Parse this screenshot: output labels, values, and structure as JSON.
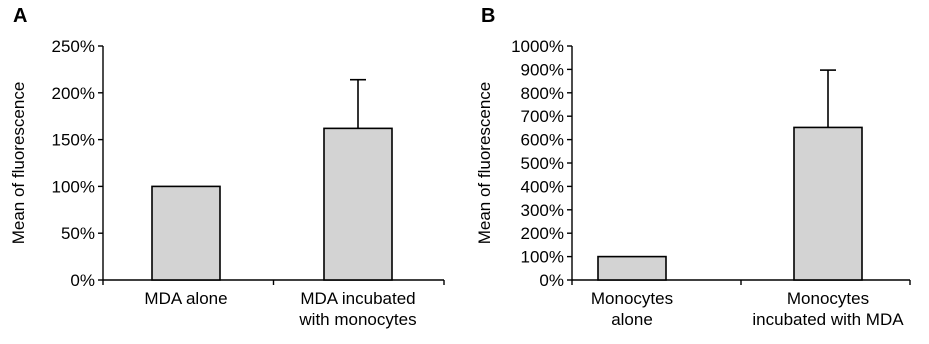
{
  "chart_data": [
    {
      "type": "bar",
      "panel": "A",
      "ylabel": "Mean of fluorescence",
      "ylim": [
        0,
        250
      ],
      "yticks": [
        "0%",
        "50%",
        "100%",
        "150%",
        "200%",
        "250%"
      ],
      "categories": [
        [
          "MDA alone"
        ],
        [
          "MDA incubated",
          "with monocytes"
        ]
      ],
      "values": [
        100,
        162
      ],
      "errors": [
        0,
        52
      ]
    },
    {
      "type": "bar",
      "panel": "B",
      "ylabel": "Mean of fluorescence",
      "ylim": [
        0,
        1000
      ],
      "yticks": [
        "0%",
        "100%",
        "200%",
        "300%",
        "400%",
        "500%",
        "600%",
        "700%",
        "800%",
        "900%",
        "1000%"
      ],
      "categories": [
        [
          "Monocytes",
          "alone"
        ],
        [
          "Monocytes",
          "incubated with MDA"
        ]
      ],
      "values": [
        100,
        652
      ],
      "errors": [
        0,
        245
      ]
    }
  ]
}
